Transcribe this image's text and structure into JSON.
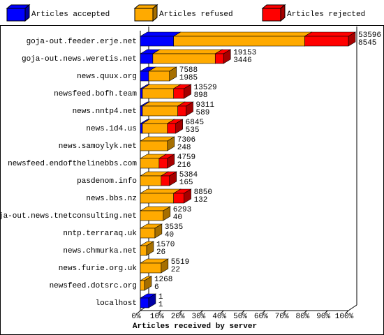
{
  "chart_data": {
    "type": "bar",
    "stacked": true,
    "horizontal": true,
    "x_label": "Articles received by server",
    "categories": [
      "goja-out.feeder.erje.net",
      "goja-out.news.weretis.net",
      "news.quux.org",
      "newsfeed.bofh.team",
      "news.nntp4.net",
      "news.1d4.us",
      "news.samoylyk.net",
      "newsfeed.endofthelinebbs.com",
      "pasdenom.info",
      "news.bbs.nz",
      "goja-out.news.tnetconsulting.net",
      "nntp.terraraq.uk",
      "news.chmurka.net",
      "news.furie.org.uk",
      "newsfeed.dotsrc.org",
      "localhost"
    ],
    "series": [
      {
        "name": "Articles accepted",
        "color": "#0000ff",
        "values": [
          16,
          6,
          4,
          1,
          1,
          1,
          0,
          0,
          0,
          0,
          0,
          0,
          0,
          0,
          0,
          4
        ]
      },
      {
        "name": "Articles refused",
        "color": "#ffaa00",
        "values": [
          63,
          30,
          10,
          15,
          17,
          12,
          13,
          9,
          10,
          16,
          11,
          7,
          3,
          10,
          2,
          0
        ]
      },
      {
        "name": "Articles rejected",
        "color": "#ff0000",
        "values": [
          21,
          4,
          0,
          5,
          4,
          4,
          0,
          4,
          4,
          5,
          0,
          0,
          0,
          0,
          0,
          0
        ]
      }
    ],
    "annotations": [
      [
        53596,
        8545
      ],
      [
        19153,
        3446
      ],
      [
        7588,
        1985
      ],
      [
        13529,
        898
      ],
      [
        9311,
        589
      ],
      [
        6845,
        535
      ],
      [
        7306,
        248
      ],
      [
        4759,
        216
      ],
      [
        5384,
        165
      ],
      [
        8850,
        132
      ],
      [
        6293,
        40
      ],
      [
        3535,
        40
      ],
      [
        1570,
        26
      ],
      [
        5519,
        22
      ],
      [
        1268,
        6
      ],
      [
        1,
        1
      ]
    ],
    "xlim": [
      0,
      100
    ],
    "xticks": [
      {
        "value": 0,
        "label": "0%"
      },
      {
        "value": 10,
        "label": "10%"
      },
      {
        "value": 20,
        "label": "20%"
      },
      {
        "value": 30,
        "label": "30%"
      },
      {
        "value": 40,
        "label": "40%"
      },
      {
        "value": 50,
        "label": "50%"
      },
      {
        "value": 60,
        "label": "60%"
      },
      {
        "value": 70,
        "label": "70%"
      },
      {
        "value": 80,
        "label": "80%"
      },
      {
        "value": 90,
        "label": "90%"
      },
      {
        "value": 100,
        "label": "100%"
      }
    ]
  }
}
